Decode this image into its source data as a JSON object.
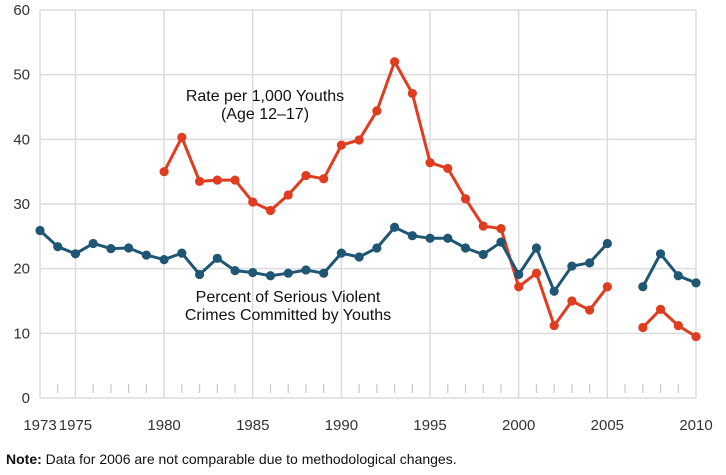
{
  "chart_data": {
    "type": "line",
    "title": "",
    "xlabel": "",
    "ylabel": "",
    "xlim": [
      1973,
      2010
    ],
    "ylim": [
      0,
      60
    ],
    "grid": true,
    "yticks": [
      0,
      10,
      20,
      30,
      40,
      50,
      60
    ],
    "xticks": [
      1973,
      1975,
      1980,
      1985,
      1990,
      1995,
      2000,
      2005,
      2010
    ],
    "annotations": [
      {
        "series": "rate",
        "lines": [
          "Rate per 1,000 Youths",
          "(Age 12–17)"
        ]
      },
      {
        "series": "percent",
        "lines": [
          "Percent of Serious Violent",
          "Crimes Committed by Youths"
        ]
      }
    ],
    "series": [
      {
        "id": "rate",
        "color": "#e03c1f",
        "segments": [
          {
            "x": [
              1980,
              1981,
              1982,
              1983,
              1984,
              1985,
              1986,
              1987,
              1988,
              1989,
              1990,
              1991,
              1992,
              1993,
              1994,
              1995,
              1996,
              1997,
              1998,
              1999,
              2000,
              2001,
              2002,
              2003,
              2004,
              2005
            ],
            "y": [
              35.0,
              40.3,
              33.5,
              33.7,
              33.7,
              30.3,
              29.0,
              31.4,
              34.4,
              33.9,
              39.1,
              39.9,
              44.4,
              52.0,
              47.1,
              36.4,
              35.5,
              30.8,
              26.6,
              26.2,
              17.2,
              19.3,
              11.2,
              15.0,
              13.6,
              17.2
            ]
          },
          {
            "x": [
              2007,
              2008,
              2009,
              2010
            ],
            "y": [
              10.9,
              13.7,
              11.2,
              9.5
            ]
          }
        ]
      },
      {
        "id": "percent",
        "color": "#1f5673",
        "segments": [
          {
            "x": [
              1973,
              1974,
              1975,
              1976,
              1977,
              1978,
              1979,
              1980,
              1981,
              1982,
              1983,
              1984,
              1985,
              1986,
              1987,
              1988,
              1989,
              1990,
              1991,
              1992,
              1993,
              1994,
              1995,
              1996,
              1997,
              1998,
              1999,
              2000,
              2001,
              2002,
              2003,
              2004,
              2005
            ],
            "y": [
              25.9,
              23.4,
              22.3,
              23.9,
              23.1,
              23.2,
              22.1,
              21.4,
              22.4,
              19.1,
              21.6,
              19.7,
              19.4,
              18.9,
              19.3,
              19.8,
              19.3,
              22.4,
              21.8,
              23.2,
              26.4,
              25.1,
              24.7,
              24.7,
              23.2,
              22.2,
              24.1,
              19.1,
              23.2,
              16.5,
              20.4,
              20.9,
              23.9
            ]
          },
          {
            "x": [
              2007,
              2008,
              2009,
              2010
            ],
            "y": [
              17.2,
              22.3,
              18.9,
              17.8
            ]
          }
        ]
      }
    ]
  },
  "note": {
    "label": "Note:",
    "text": " Data for 2006 are not comparable due to methodological changes."
  }
}
